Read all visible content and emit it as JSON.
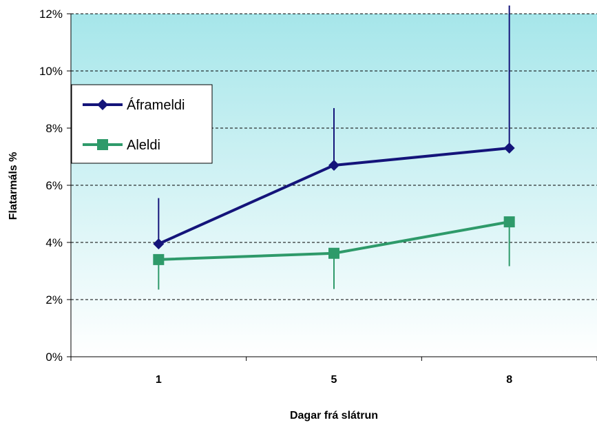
{
  "chart_data": {
    "type": "line",
    "title": "",
    "xlabel": "Dagar frá slátrun",
    "ylabel": "Flatarmáls %",
    "categories": [
      "1",
      "5",
      "8"
    ],
    "ylim": [
      0,
      12
    ],
    "yticks": [
      0,
      2,
      4,
      6,
      8,
      10,
      12
    ],
    "ytick_labels": [
      "0%",
      "2%",
      "4%",
      "6%",
      "8%",
      "10%",
      "12%"
    ],
    "grid": "horizontal dashed",
    "legend_position": "top-left",
    "background": {
      "top": "#a6e6ea",
      "bottom": "#ffffff"
    },
    "series": [
      {
        "name": "Áframeldi",
        "color": "#14147a",
        "marker": "diamond",
        "values": [
          3.95,
          6.7,
          7.3
        ],
        "error_up": [
          1.6,
          2.0,
          5.0
        ],
        "error_down": [
          0,
          0,
          0
        ]
      },
      {
        "name": "Aleldi",
        "color": "#2e9a6a",
        "marker": "square",
        "values": [
          3.4,
          3.62,
          4.72
        ],
        "error_up": [
          0,
          0,
          0
        ],
        "error_down": [
          1.05,
          1.25,
          1.55
        ]
      }
    ]
  }
}
